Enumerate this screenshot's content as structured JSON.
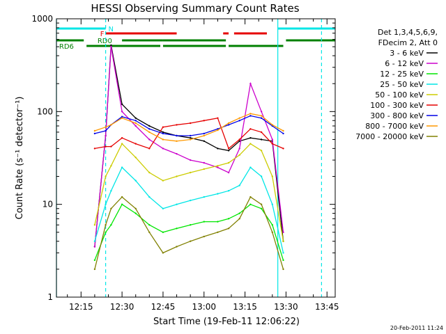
{
  "chart_data": {
    "type": "line",
    "title": "HESSI Observing Summary Count Rates",
    "xlabel": "Start Time (19-Feb-11 12:06:22)",
    "ylabel": "Count Rate (s⁻¹ detector⁻¹)",
    "y_scale": "log",
    "ylim": [
      1,
      1000
    ],
    "y_ticks": [
      1,
      10,
      100,
      1000
    ],
    "y_tick_labels": [
      "1",
      "10",
      "100",
      "1000"
    ],
    "xlim": [
      "12:06",
      "13:48"
    ],
    "x_ticks": [
      "12:15",
      "12:30",
      "12:45",
      "13:00",
      "13:15",
      "13:30",
      "13:45"
    ],
    "legend_position": "right",
    "legend_header": [
      "Det 1,3,4,5,6,9,",
      "FDecim 2, Att 0"
    ],
    "timestamp": "20-Feb-2011 11:24",
    "flags": [
      {
        "label": "N",
        "color": "#00e6e6",
        "intervals": [
          [
            "12:06",
            "12:24"
          ],
          [
            "13:27",
            "13:48"
          ]
        ]
      },
      {
        "label": "F",
        "color": "#e60000",
        "intervals": [
          [
            "12:24",
            "12:50"
          ],
          [
            "13:07",
            "13:09"
          ],
          [
            "13:11",
            "13:23"
          ]
        ]
      },
      {
        "label": "RD0",
        "color": "#008000",
        "intervals": [
          [
            "12:06",
            "12:16"
          ],
          [
            "12:30",
            "12:45"
          ],
          [
            "12:45",
            "13:08"
          ],
          [
            "13:30",
            "13:48"
          ]
        ]
      },
      {
        "label": "RD6",
        "color": "#008000",
        "intervals": [
          [
            "12:17",
            "12:44"
          ],
          [
            "12:45",
            "13:08"
          ],
          [
            "13:09",
            "13:29"
          ]
        ]
      }
    ],
    "vlines": [
      {
        "x": "12:06",
        "color": "#00e6e6",
        "style": "solid"
      },
      {
        "x": "12:24",
        "color": "#00e6e6",
        "style": "dashed"
      },
      {
        "x": "13:27",
        "color": "#00e6e6",
        "style": "solid"
      },
      {
        "x": "13:43",
        "color": "#00e6e6",
        "style": "dashed"
      }
    ],
    "x": [
      "12:20",
      "12:24",
      "12:26",
      "12:30",
      "12:35",
      "12:40",
      "12:45",
      "12:50",
      "12:55",
      "13:00",
      "13:05",
      "13:09",
      "13:13",
      "13:17",
      "13:21",
      "13:25",
      "13:29"
    ],
    "series": [
      {
        "name": "3 - 6 keV",
        "color": "#000000",
        "values": [
          3.5,
          55,
          520,
          120,
          85,
          70,
          60,
          55,
          52,
          48,
          40,
          38,
          48,
          52,
          50,
          48,
          4
        ]
      },
      {
        "name": "6 - 12 keV",
        "color": "#cc00cc",
        "values": [
          3.5,
          55,
          500,
          100,
          70,
          50,
          40,
          35,
          30,
          28,
          25,
          22,
          40,
          200,
          100,
          50,
          5
        ]
      },
      {
        "name": "12 - 25 keV",
        "color": "#00e600",
        "values": [
          2.5,
          5,
          6,
          10,
          8,
          6,
          5,
          5.5,
          6,
          6.5,
          6.5,
          7,
          8,
          10,
          9,
          6,
          2.5
        ]
      },
      {
        "name": "25 - 50 keV",
        "color": "#00e6e6",
        "values": [
          4,
          10,
          14,
          25,
          18,
          12,
          9,
          10,
          11,
          12,
          13,
          14,
          16,
          25,
          20,
          10,
          3
        ]
      },
      {
        "name": "50 - 100 keV",
        "color": "#cccc00",
        "values": [
          6,
          20,
          26,
          45,
          32,
          22,
          18,
          20,
          22,
          24,
          26,
          28,
          34,
          45,
          38,
          20,
          4
        ]
      },
      {
        "name": "100 - 300 keV",
        "color": "#e60000",
        "values": [
          40,
          42,
          42,
          52,
          45,
          40,
          68,
          72,
          75,
          80,
          85,
          40,
          50,
          65,
          60,
          45,
          40
        ]
      },
      {
        "name": "300 - 800 keV",
        "color": "#0000e6",
        "values": [
          58,
          62,
          72,
          88,
          80,
          65,
          58,
          55,
          55,
          58,
          65,
          72,
          80,
          90,
          85,
          70,
          58
        ]
      },
      {
        "name": "800 - 7000 keV",
        "color": "#ff9900",
        "values": [
          62,
          68,
          72,
          85,
          75,
          60,
          50,
          48,
          50,
          55,
          63,
          75,
          85,
          95,
          90,
          72,
          62
        ]
      },
      {
        "name": "7000 - 20000 keV",
        "color": "#808000",
        "values": [
          2,
          6,
          9,
          12,
          9,
          5,
          3,
          3.5,
          4,
          4.5,
          5,
          5.5,
          7,
          12,
          10,
          5,
          2
        ]
      }
    ]
  }
}
